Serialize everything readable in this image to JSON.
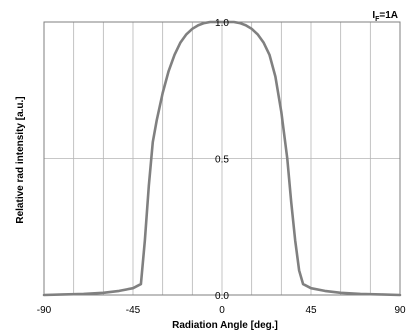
{
  "chart_data": {
    "type": "line",
    "title": "",
    "xlabel": "Radiation Angle  [deg.]",
    "ylabel": "Relative rad intensity [a.u.]",
    "xlim": [
      -90,
      90
    ],
    "ylim": [
      0,
      1.0
    ],
    "x_grid_step": 15,
    "x_tick_values": [
      -90,
      -45,
      0,
      45,
      90
    ],
    "x_tick_labels": [
      "-90",
      "-45",
      "0",
      "45",
      "90"
    ],
    "y_tick_values": [
      0,
      0.5,
      1.0
    ],
    "y_tick_labels": [
      "0.0",
      "0.5",
      "1.0"
    ],
    "grid": true,
    "annotation": {
      "main": "I",
      "sub": "F",
      "suffix": "=1A"
    },
    "series": [
      {
        "line_color": "#808080",
        "x": [
          -90,
          -80,
          -70,
          -60,
          -52,
          -45,
          -41,
          -39,
          -37,
          -35,
          -33,
          -30,
          -27,
          -24,
          -21,
          -18,
          -15,
          -12,
          -9,
          -6,
          -3,
          0,
          3,
          6,
          9,
          12,
          15,
          18,
          21,
          24,
          27,
          30,
          33,
          35,
          37,
          39,
          41,
          45,
          52,
          60,
          70,
          80,
          90
        ],
        "y": [
          0,
          0.002,
          0.004,
          0.008,
          0.015,
          0.025,
          0.04,
          0.2,
          0.4,
          0.56,
          0.64,
          0.74,
          0.82,
          0.88,
          0.925,
          0.955,
          0.975,
          0.988,
          0.996,
          1.0,
          1.0,
          1.0,
          1.0,
          1.0,
          0.996,
          0.988,
          0.975,
          0.955,
          0.925,
          0.88,
          0.8,
          0.67,
          0.5,
          0.34,
          0.2,
          0.09,
          0.04,
          0.025,
          0.015,
          0.008,
          0.004,
          0.002,
          0
        ]
      }
    ]
  }
}
